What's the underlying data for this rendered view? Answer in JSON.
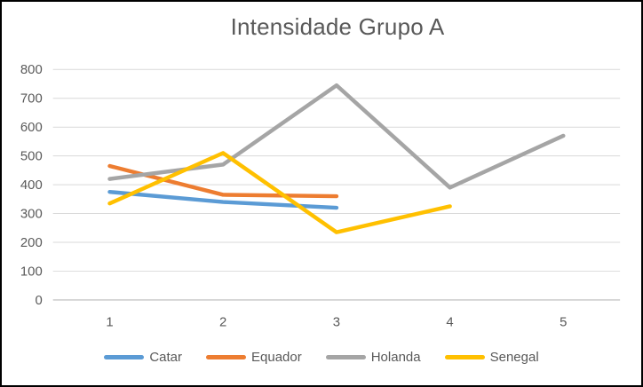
{
  "chart_data": {
    "type": "line",
    "title": "Intensidade Grupo A",
    "categories": [
      "1",
      "2",
      "3",
      "4",
      "5"
    ],
    "series": [
      {
        "name": "Catar",
        "color": "#5B9BD5",
        "values": [
          375,
          340,
          320
        ]
      },
      {
        "name": "Equador",
        "color": "#ED7D31",
        "values": [
          465,
          365,
          360
        ]
      },
      {
        "name": "Holanda",
        "color": "#A5A5A5",
        "values": [
          420,
          470,
          745,
          390,
          570
        ]
      },
      {
        "name": "Senegal",
        "color": "#FFC000",
        "values": [
          335,
          510,
          235,
          325
        ]
      }
    ],
    "ylim": [
      0,
      800
    ],
    "yticks": [
      0,
      100,
      200,
      300,
      400,
      500,
      600,
      700,
      800
    ],
    "xlabel": "",
    "ylabel": "",
    "grid": true,
    "legend_position": "bottom-center",
    "colors": {
      "title_text": "#595959",
      "axis_text": "#595959",
      "gridline": "#D9D9D9",
      "axis_line": "#C6C6C6",
      "frame_border": "#000000",
      "background": "#FFFFFF"
    }
  }
}
